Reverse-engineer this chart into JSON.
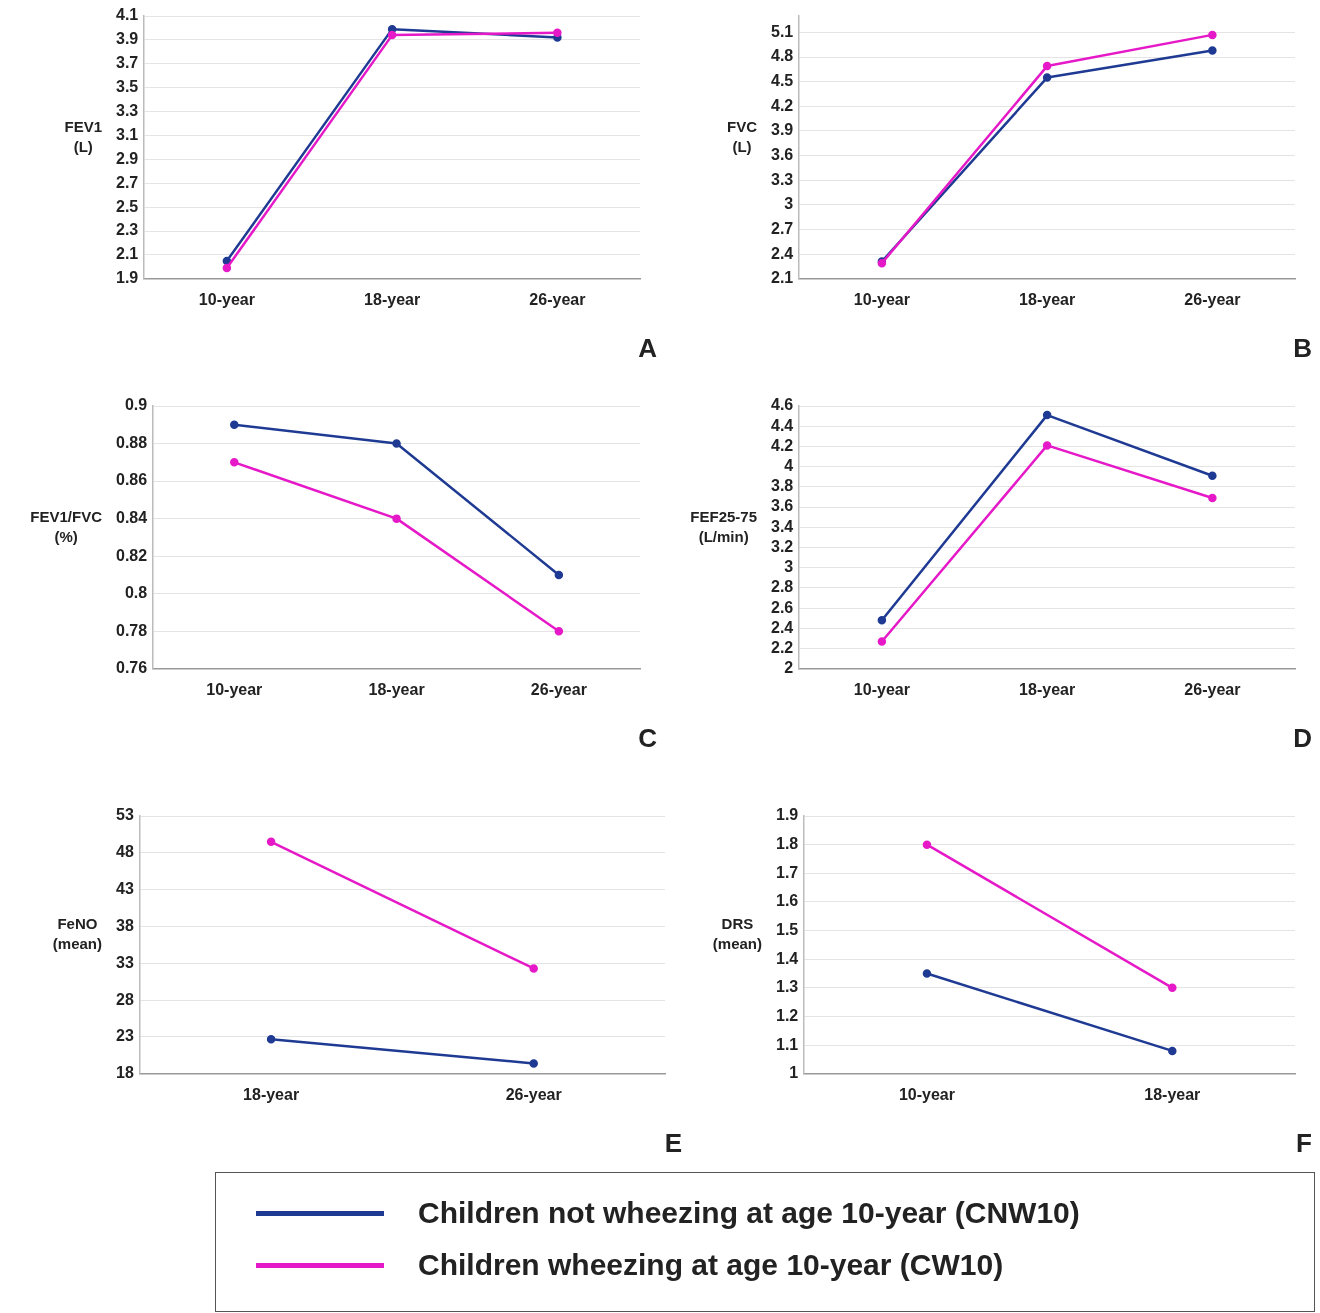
{
  "chart_data": [
    {
      "type": "line",
      "ylabel": "FEV1 (L)",
      "categories": [
        "10-year",
        "18-year",
        "26-year"
      ],
      "ylim": [
        1.9,
        4.1
      ],
      "yticks": [
        1.9,
        2.1,
        2.3,
        2.5,
        2.7,
        2.9,
        3.1,
        3.3,
        3.5,
        3.7,
        3.9,
        4.1
      ],
      "grid": "y",
      "marker": "circle",
      "line_style": "solid",
      "legend": "bottom",
      "annotations": [
        "A"
      ],
      "series": [
        {
          "name": "Children not wheezing at age 10-year (CNW10)",
          "color": "#1f3a93",
          "values": [
            2.05,
            3.99,
            3.92
          ]
        },
        {
          "name": "Children wheezing at age 10-year (CW10)",
          "color": "#e619c8",
          "values": [
            1.99,
            3.94,
            3.96
          ]
        }
      ]
    },
    {
      "type": "line",
      "ylabel": "FVC (L)",
      "categories": [
        "10-year",
        "18-year",
        "26-year"
      ],
      "ylim": [
        2.1,
        5.3
      ],
      "yticks": [
        2.1,
        2.4,
        2.7,
        3,
        3.3,
        3.6,
        3.9,
        4.2,
        4.5,
        4.8,
        5.1
      ],
      "grid": "y",
      "marker": "circle",
      "line_style": "solid",
      "annotations": [
        "B"
      ],
      "series": [
        {
          "color": "#1f3a93",
          "values": [
            2.31,
            4.55,
            4.88
          ]
        },
        {
          "color": "#e619c8",
          "values": [
            2.29,
            4.69,
            5.07
          ]
        }
      ]
    },
    {
      "type": "line",
      "ylabel": "FEV1/FVC (%)",
      "categories": [
        "10-year",
        "18-year",
        "26-year"
      ],
      "ylim": [
        0.76,
        0.9
      ],
      "yticks": [
        0.76,
        0.78,
        0.8,
        0.82,
        0.84,
        0.86,
        0.88,
        0.9
      ],
      "grid": "y",
      "marker": "circle",
      "line_style": "solid",
      "annotations": [
        "C"
      ],
      "series": [
        {
          "color": "#1f3a93",
          "values": [
            0.89,
            0.88,
            0.81
          ]
        },
        {
          "color": "#e619c8",
          "values": [
            0.87,
            0.84,
            0.78
          ]
        }
      ]
    },
    {
      "type": "line",
      "ylabel": "FEF25-75 (L/min)",
      "categories": [
        "10-year",
        "18-year",
        "26-year"
      ],
      "ylim": [
        2,
        4.6
      ],
      "yticks": [
        2,
        2.2,
        2.4,
        2.6,
        2.8,
        3,
        3.2,
        3.4,
        3.6,
        3.8,
        4,
        4.2,
        4.4,
        4.6
      ],
      "grid": "y",
      "marker": "circle",
      "line_style": "solid",
      "annotations": [
        "D"
      ],
      "series": [
        {
          "color": "#1f3a93",
          "values": [
            2.48,
            4.51,
            3.91
          ]
        },
        {
          "color": "#e619c8",
          "values": [
            2.27,
            4.21,
            3.69
          ]
        }
      ]
    },
    {
      "type": "line",
      "ylabel": "FeNO (mean)",
      "categories": [
        "18-year",
        "26-year"
      ],
      "ylim": [
        18,
        53
      ],
      "yticks": [
        18,
        23,
        28,
        33,
        38,
        43,
        48,
        53
      ],
      "grid": "y",
      "marker": "circle",
      "line_style": "solid",
      "annotations": [
        "E"
      ],
      "series": [
        {
          "color": "#1f3a93",
          "values": [
            22.7,
            19.4
          ]
        },
        {
          "color": "#e619c8",
          "values": [
            49.5,
            32.3
          ]
        }
      ]
    },
    {
      "type": "line",
      "ylabel": "DRS (mean)",
      "categories": [
        "10-year",
        "18-year"
      ],
      "ylim": [
        1,
        1.9
      ],
      "yticks": [
        1,
        1.1,
        1.2,
        1.3,
        1.4,
        1.5,
        1.6,
        1.7,
        1.8,
        1.9
      ],
      "grid": "y",
      "marker": "circle",
      "line_style": "solid",
      "annotations": [
        "F"
      ],
      "series": [
        {
          "color": "#1f3a93",
          "values": [
            1.35,
            1.08
          ]
        },
        {
          "color": "#e619c8",
          "values": [
            1.8,
            1.3
          ]
        }
      ]
    }
  ]
}
